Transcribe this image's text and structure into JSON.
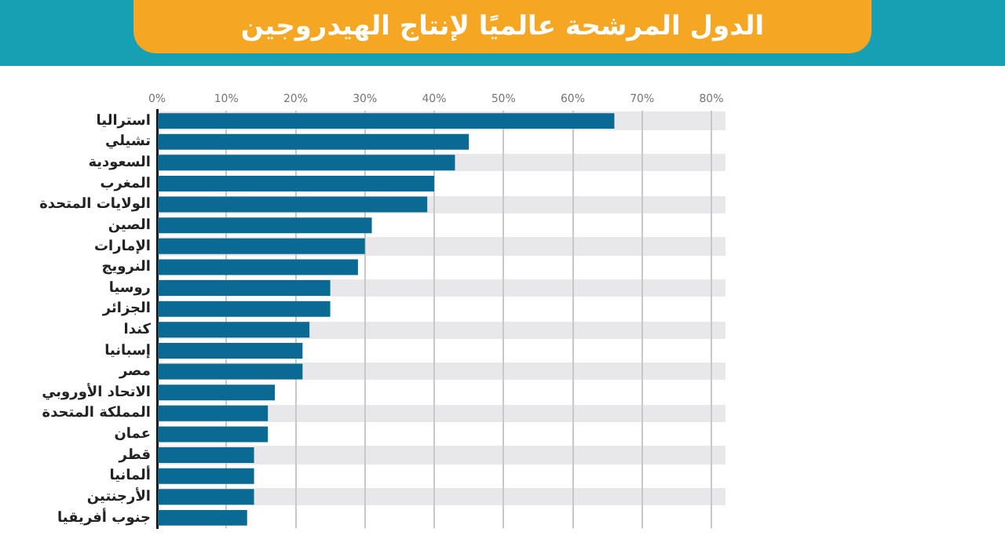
{
  "chart_data": {
    "type": "bar",
    "orientation": "horizontal",
    "title": "الدول المرشحة عالميًا لإنتاج الهيدروجين",
    "categories": [
      "استراليا",
      "تشيلي",
      "السعودية",
      "المغرب",
      "الولايات المتحدة",
      "الصين",
      "الإمارات",
      "النرويج",
      "روسيا",
      "الجزائر",
      "كندا",
      "إسبانيا",
      "مصر",
      "الاتحاد الأوروبي",
      "المملكة المتحدة",
      "عمان",
      "قطر",
      "ألمانيا",
      "الأرجنتين",
      "جنوب أفريقيا"
    ],
    "values": [
      66,
      45,
      43,
      40,
      39,
      31,
      30,
      29,
      25,
      25,
      22,
      21,
      21,
      17,
      16,
      16,
      14,
      14,
      14,
      13
    ],
    "color": "#0b6a93",
    "xlim": [
      0,
      80
    ],
    "xticks": [
      {
        "value": 0,
        "label": "0%"
      },
      {
        "value": 10,
        "label": "10%"
      },
      {
        "value": 20,
        "label": "20%"
      },
      {
        "value": 30,
        "label": "30%"
      },
      {
        "value": 40,
        "label": "40%"
      },
      {
        "value": 50,
        "label": "50%"
      },
      {
        "value": 60,
        "label": "60%"
      },
      {
        "value": 70,
        "label": "70%"
      },
      {
        "value": 80,
        "label": "80%"
      }
    ],
    "grid": "x",
    "legend": false
  }
}
